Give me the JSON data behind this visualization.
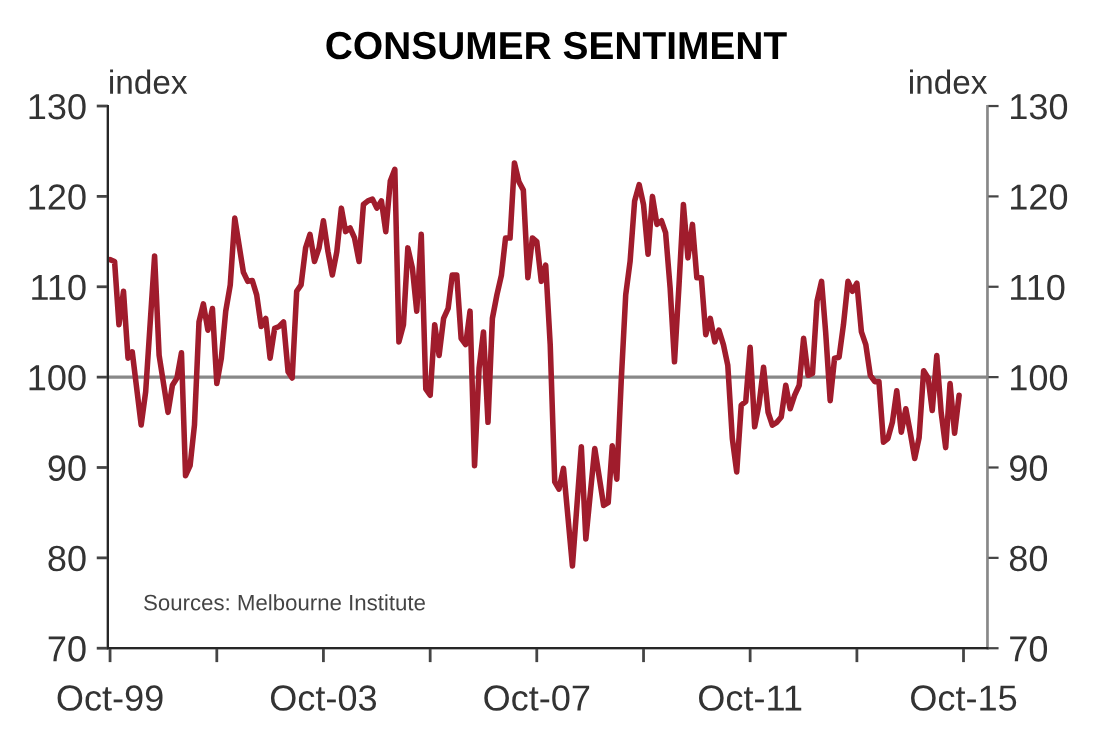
{
  "chart_data": {
    "type": "line",
    "title": "CONSUMER SENTIMENT",
    "ylabel": "index",
    "y2label": "index",
    "annotations": [
      "Sources: Melbourne Institute"
    ],
    "series": [
      {
        "color": "#a01c2c",
        "x": [
          "1999-10",
          "1999-11",
          "1999-12",
          "2000-01",
          "2000-02",
          "2000-03",
          "2000-05",
          "2000-06",
          "2000-08",
          "2000-09",
          "2000-11",
          "2000-12",
          "2001-01",
          "2001-02",
          "2001-03",
          "2001-04",
          "2001-05",
          "2001-06",
          "2001-07",
          "2001-08",
          "2001-09",
          "2001-10",
          "2001-11",
          "2001-12",
          "2002-01",
          "2002-02",
          "2002-04",
          "2002-05",
          "2002-06",
          "2002-07",
          "2002-08",
          "2002-09",
          "2002-10",
          "2002-11",
          "2002-12",
          "2003-01",
          "2003-02",
          "2003-03",
          "2003-04",
          "2003-05",
          "2003-06",
          "2003-07",
          "2003-08",
          "2003-09",
          "2003-10",
          "2003-11",
          "2003-12",
          "2004-01",
          "2004-02",
          "2004-03",
          "2004-04",
          "2004-05",
          "2004-06",
          "2004-07",
          "2004-08",
          "2004-09",
          "2004-10",
          "2004-11",
          "2004-12",
          "2005-01",
          "2005-02",
          "2005-03",
          "2005-04",
          "2005-05",
          "2005-06",
          "2005-07",
          "2005-08",
          "2005-09",
          "2005-10",
          "2005-11",
          "2005-12",
          "2006-01",
          "2006-02",
          "2006-03",
          "2006-04",
          "2006-05",
          "2006-06",
          "2006-07",
          "2006-08",
          "2006-09",
          "2006-10",
          "2006-11",
          "2006-12",
          "2007-01",
          "2007-02",
          "2007-03",
          "2007-04",
          "2007-05",
          "2007-06",
          "2007-07",
          "2007-08",
          "2007-09",
          "2007-10",
          "2007-11",
          "2007-12",
          "2008-01",
          "2008-02",
          "2008-03",
          "2008-04",
          "2008-06",
          "2008-08",
          "2008-09",
          "2008-11",
          "2009-01",
          "2009-02",
          "2009-03",
          "2009-04",
          "2009-05",
          "2009-06",
          "2009-07",
          "2009-08",
          "2009-09",
          "2009-10",
          "2009-11",
          "2009-12",
          "2010-01",
          "2010-02",
          "2010-03",
          "2010-04",
          "2010-05",
          "2010-06",
          "2010-07",
          "2010-08",
          "2010-09",
          "2010-10",
          "2010-11",
          "2010-12",
          "2011-01",
          "2011-02",
          "2011-03",
          "2011-04",
          "2011-05",
          "2011-06",
          "2011-07",
          "2011-08",
          "2011-09",
          "2011-10",
          "2011-11",
          "2011-12",
          "2012-01",
          "2012-02",
          "2012-03",
          "2012-04",
          "2012-05",
          "2012-06",
          "2012-07",
          "2012-08",
          "2012-09",
          "2012-10",
          "2012-11",
          "2012-12",
          "2013-01",
          "2013-02",
          "2013-03",
          "2013-04",
          "2013-05",
          "2013-06",
          "2013-07",
          "2013-08",
          "2013-09",
          "2013-10",
          "2013-11",
          "2013-12",
          "2014-01",
          "2014-02",
          "2014-03",
          "2014-04",
          "2014-05",
          "2014-06",
          "2014-07",
          "2014-08",
          "2014-09",
          "2014-10",
          "2014-11",
          "2014-12",
          "2015-01",
          "2015-02",
          "2015-03",
          "2015-04",
          "2015-05",
          "2015-06",
          "2015-07",
          "2015-08",
          "2015-09"
        ],
        "values": [
          113,
          112.8,
          105.8,
          109.5,
          102.1,
          102.8,
          94.7,
          98.4,
          113.4,
          102.4,
          96.1,
          99.1,
          99.9,
          102.7,
          89.1,
          90.2,
          94.7,
          106.1,
          108.1,
          105.2,
          107.6,
          99.3,
          102.1,
          107.3,
          110.2,
          117.6,
          111.6,
          110.6,
          110.7,
          109.1,
          105.6,
          106.5,
          102.1,
          105.4,
          105.6,
          106.1,
          100.6,
          99.9,
          109.5,
          110.2,
          114.3,
          115.8,
          112.8,
          114.3,
          117.3,
          113.9,
          111.3,
          113.9,
          118.7,
          116.1,
          116.5,
          115.4,
          112.8,
          119.1,
          119.5,
          119.7,
          118.7,
          119.5,
          116.1,
          121.7,
          123,
          103.9,
          105.8,
          114.3,
          112.1,
          107.3,
          115.8,
          98.7,
          98,
          105.8,
          102.4,
          106.5,
          107.6,
          111.3,
          111.3,
          104.3,
          103.6,
          107.3,
          90.2,
          101,
          105,
          95,
          106.5,
          109.1,
          111.3,
          115.4,
          115.4,
          123.7,
          121.6,
          120.7,
          111,
          115.4,
          115,
          110.6,
          112.4,
          103.6,
          88.4,
          87.6,
          89.9,
          79.1,
          92.3,
          82.1,
          92.1,
          85.8,
          86.1,
          92.4,
          88.7,
          99.5,
          109.1,
          112.8,
          119.5,
          121.3,
          119.1,
          113.6,
          120,
          116.9,
          117.3,
          116,
          109.9,
          101.7,
          110.2,
          119.1,
          113.2,
          116.9,
          111,
          111,
          104.7,
          106.5,
          103.9,
          105.2,
          103.6,
          101.3,
          93.2,
          89.5,
          96.9,
          97.3,
          103.3,
          94.5,
          97,
          101.1,
          96.1,
          94.7,
          95,
          95.6,
          99.1,
          96.5,
          98,
          99.1,
          104.3,
          100.2,
          100.4,
          108.4,
          110.6,
          105,
          97.4,
          102.1,
          102.2,
          105.8,
          110.6,
          109.5,
          110.4,
          105,
          103.6,
          100.2,
          99.5,
          99.5,
          92.8,
          93.2,
          95,
          98.5,
          93.9,
          96.5,
          93.9,
          91,
          93.3,
          100.7,
          99.9,
          96.3,
          102.4,
          96.1,
          92.2,
          99.3,
          93.8,
          98
        ]
      }
    ],
    "xlim": [
      "1999-09-16",
      "2016-03-13"
    ],
    "xticks": [
      {
        "value": "1999-10",
        "label": "Oct-99"
      },
      {
        "value": "2001-10",
        "label": null
      },
      {
        "value": "2003-10",
        "label": "Oct-03"
      },
      {
        "value": "2005-10",
        "label": null
      },
      {
        "value": "2007-10",
        "label": "Oct-07"
      },
      {
        "value": "2009-10",
        "label": null
      },
      {
        "value": "2011-10",
        "label": "Oct-11"
      },
      {
        "value": "2013-10",
        "label": null
      },
      {
        "value": "2015-10",
        "label": "Oct-15"
      }
    ],
    "ylim": [
      70,
      130
    ],
    "yticks": [
      70,
      80,
      90,
      100,
      110,
      120,
      130
    ],
    "y2lim": [
      70,
      130
    ],
    "y2ticks": [
      70,
      80,
      90,
      100,
      110,
      120,
      130
    ],
    "ref_lines": [
      {
        "axis": "y",
        "value": 100,
        "color": "#888888"
      }
    ],
    "grid": false,
    "legend": false
  }
}
